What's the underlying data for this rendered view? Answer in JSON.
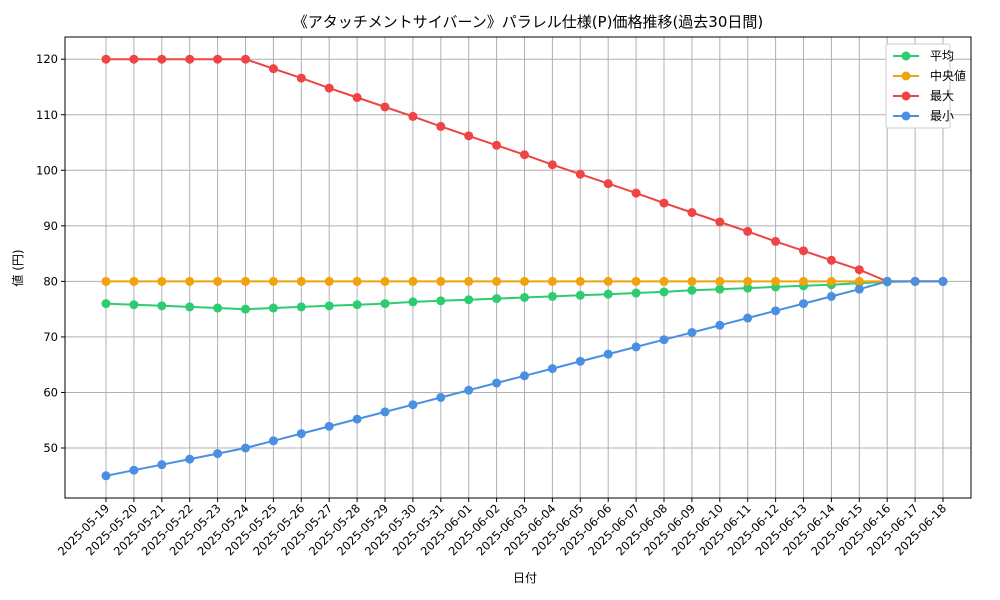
{
  "chart_data": {
    "type": "line",
    "title": "《アタッチメントサイバーン》パラレル仕様(P)価格推移(過去30日間)",
    "xlabel": "日付",
    "ylabel": "値 (円)",
    "ylim": [
      41,
      124
    ],
    "yticks": [
      50,
      60,
      70,
      80,
      90,
      100,
      110,
      120
    ],
    "grid": true,
    "legend_position": "top-right",
    "categories": [
      "2025-05-19",
      "2025-05-20",
      "2025-05-21",
      "2025-05-22",
      "2025-05-23",
      "2025-05-24",
      "2025-05-25",
      "2025-05-26",
      "2025-05-27",
      "2025-05-28",
      "2025-05-29",
      "2025-05-30",
      "2025-05-31",
      "2025-06-01",
      "2025-06-02",
      "2025-06-03",
      "2025-06-04",
      "2025-06-05",
      "2025-06-06",
      "2025-06-07",
      "2025-06-08",
      "2025-06-09",
      "2025-06-10",
      "2025-06-11",
      "2025-06-12",
      "2025-06-13",
      "2025-06-14",
      "2025-06-15",
      "2025-06-16",
      "2025-06-17",
      "2025-06-18"
    ],
    "series": [
      {
        "name": "平均",
        "color": "#2ecc71",
        "values": [
          76.0,
          75.8,
          75.6,
          75.4,
          75.2,
          75.0,
          75.2,
          75.4,
          75.6,
          75.8,
          76.0,
          76.3,
          76.5,
          76.7,
          76.9,
          77.1,
          77.3,
          77.5,
          77.7,
          77.9,
          78.1,
          78.4,
          78.6,
          78.8,
          79.0,
          79.2,
          79.4,
          79.7,
          79.9,
          80.0,
          80.0
        ]
      },
      {
        "name": "中央値",
        "color": "#f0a30a",
        "values": [
          80,
          80,
          80,
          80,
          80,
          80,
          80,
          80,
          80,
          80,
          80,
          80,
          80,
          80,
          80,
          80,
          80,
          80,
          80,
          80,
          80,
          80,
          80,
          80,
          80,
          80,
          80,
          80,
          80,
          80,
          80
        ]
      },
      {
        "name": "最大",
        "color": "#ef4444",
        "values": [
          120,
          120,
          120,
          120,
          120,
          120,
          118.3,
          116.6,
          114.8,
          113.1,
          111.4,
          109.7,
          107.9,
          106.2,
          104.5,
          102.8,
          101.0,
          99.3,
          97.6,
          95.9,
          94.1,
          92.4,
          90.7,
          89.0,
          87.2,
          85.5,
          83.8,
          82.1,
          80.0,
          80.0,
          80.0
        ]
      },
      {
        "name": "最小",
        "color": "#4a90e2",
        "values": [
          45,
          46.0,
          47.0,
          48.0,
          49.0,
          50.0,
          51.3,
          52.6,
          53.9,
          55.2,
          56.5,
          57.8,
          59.1,
          60.4,
          61.7,
          63.0,
          64.3,
          65.6,
          66.9,
          68.2,
          69.5,
          70.8,
          72.1,
          73.4,
          74.7,
          76.0,
          77.3,
          78.6,
          80.0,
          80.0,
          80.0
        ]
      }
    ]
  }
}
